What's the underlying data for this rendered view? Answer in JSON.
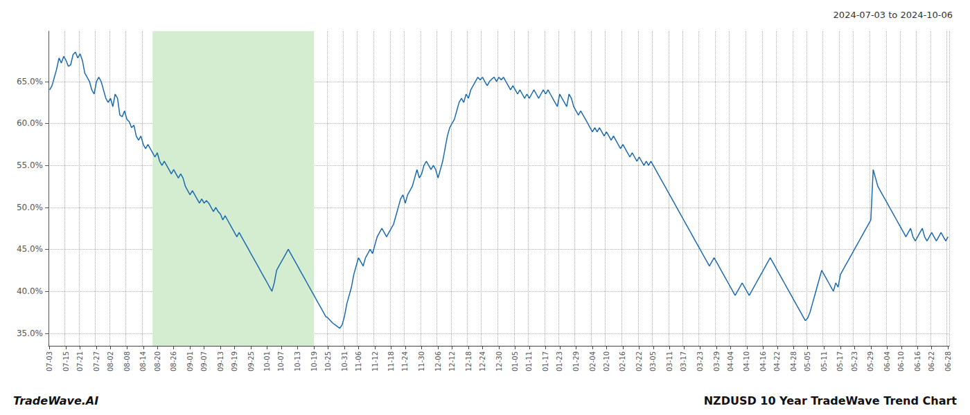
{
  "chart_data": {
    "type": "line",
    "title": "NZDUSD 10 Year TradeWave Trend Chart",
    "annotations": [
      "2024-07-03 to 2024-10-06",
      "TradeWave.AI"
    ],
    "color": "#1a6ab0",
    "grid": true,
    "shade": {
      "x0": 44,
      "x1": 113,
      "color": "#d4ecd0"
    },
    "ylim": [
      33.5,
      71.0
    ],
    "yticks": [
      {
        "value": 35.0,
        "label": "35.0%"
      },
      {
        "value": 40.0,
        "label": "40.0%"
      },
      {
        "value": 45.0,
        "label": "45.0%"
      },
      {
        "value": 50.0,
        "label": "50.0%"
      },
      {
        "value": 55.0,
        "label": "55.0%"
      },
      {
        "value": 60.0,
        "label": "60.0%"
      },
      {
        "value": 65.0,
        "label": "65.0%"
      }
    ],
    "categories": [
      "07-03",
      null,
      null,
      null,
      null,
      null,
      null,
      "07-15",
      null,
      null,
      null,
      null,
      null,
      "07-21",
      null,
      null,
      null,
      null,
      null,
      null,
      "07-27",
      null,
      null,
      null,
      null,
      null,
      "08-02",
      null,
      null,
      null,
      null,
      null,
      null,
      "08-08",
      null,
      null,
      null,
      null,
      null,
      null,
      "08-14",
      null,
      null,
      null,
      null,
      null,
      "08-20",
      null,
      null,
      null,
      null,
      null,
      null,
      "08-26",
      null,
      null,
      null,
      null,
      null,
      null,
      "09-01",
      null,
      null,
      null,
      null,
      null,
      "09-07",
      null,
      null,
      null,
      null,
      null,
      null,
      "09-13",
      null,
      null,
      null,
      null,
      null,
      "09-19",
      null,
      null,
      null,
      null,
      null,
      null,
      "09-25",
      null,
      null,
      null,
      null,
      null,
      null,
      "10-01",
      null,
      null,
      null,
      null,
      null,
      "10-07",
      null,
      null,
      null,
      null,
      null,
      null,
      "10-13",
      null,
      null,
      null,
      null,
      null,
      null,
      "10-19",
      null,
      null,
      null,
      null,
      null,
      "10-25",
      null,
      null,
      null,
      null,
      null,
      null,
      "10-31",
      null,
      null,
      null,
      null,
      null,
      "11-06",
      null,
      null,
      null,
      null,
      null,
      null,
      "11-12",
      null,
      null,
      null,
      null,
      null,
      null,
      "11-18",
      null,
      null,
      null,
      null,
      null,
      "11-24",
      null,
      null,
      null,
      null,
      null,
      null,
      "11-30",
      null,
      null,
      null,
      null,
      null,
      null,
      "12-06",
      null,
      null,
      null,
      null,
      null,
      "12-12",
      null,
      null,
      null,
      null,
      null,
      null,
      "12-18",
      null,
      null,
      null,
      null,
      null,
      "12-24",
      null,
      null,
      null,
      null,
      null,
      null,
      "12-30",
      null,
      null,
      null,
      null,
      null,
      null,
      "01-05",
      null,
      null,
      null,
      null,
      null,
      "01-11",
      null,
      null,
      null,
      null,
      null,
      null,
      "01-17",
      null,
      null,
      null,
      null,
      null,
      "01-23",
      null,
      null,
      null,
      null,
      null,
      null,
      "01-29",
      null,
      null,
      null,
      null,
      null,
      null,
      "02-04",
      null,
      null,
      null,
      null,
      null,
      "02-10",
      null,
      null,
      null,
      null,
      null,
      null,
      "02-16",
      null,
      null,
      null,
      null,
      null,
      null,
      "02-22",
      null,
      null,
      null,
      null,
      null,
      "03-05",
      null,
      null,
      null,
      null,
      null,
      null,
      "03-11",
      null,
      null,
      null,
      null,
      null,
      "03-17",
      null,
      null,
      null,
      null,
      null,
      null,
      "03-23",
      null,
      null,
      null,
      null,
      null,
      null,
      "03-29",
      null,
      null,
      null,
      null,
      null,
      "04-04",
      null,
      null,
      null,
      null,
      null,
      null,
      "04-10",
      null,
      null,
      null,
      null,
      null,
      null,
      "04-16",
      null,
      null,
      null,
      null,
      null,
      "04-22",
      null,
      null,
      null,
      null,
      null,
      null,
      "04-28",
      null,
      null,
      null,
      null,
      null,
      "05-05",
      null,
      null,
      null,
      null,
      null,
      null,
      "05-11",
      null,
      null,
      null,
      null,
      null,
      null,
      "05-17",
      null,
      null,
      null,
      null,
      null,
      "05-23",
      null,
      null,
      null,
      null,
      null,
      null,
      "05-29",
      null,
      null,
      null,
      null,
      null,
      null,
      "06-04",
      null,
      null,
      null,
      null,
      null,
      "06-10",
      null,
      null,
      null,
      null,
      null,
      null,
      "06-16",
      null,
      null,
      null,
      null,
      null,
      "06-22",
      null,
      null,
      null,
      null,
      null,
      null,
      "06-28"
    ],
    "values": [
      64.0,
      64.5,
      65.5,
      66.5,
      67.8,
      67.2,
      68.0,
      67.5,
      66.8,
      67.0,
      68.2,
      68.5,
      67.8,
      68.3,
      67.5,
      66.0,
      65.5,
      65.0,
      64.0,
      63.5,
      65.0,
      65.5,
      65.0,
      64.0,
      63.0,
      62.5,
      63.0,
      62.0,
      63.5,
      63.0,
      61.0,
      60.8,
      61.5,
      60.5,
      60.2,
      59.5,
      59.8,
      58.5,
      58.0,
      58.5,
      57.5,
      57.0,
      57.5,
      57.0,
      56.5,
      56.0,
      56.5,
      55.5,
      55.0,
      55.5,
      55.0,
      54.5,
      54.0,
      54.5,
      54.0,
      53.5,
      54.0,
      53.5,
      52.5,
      52.0,
      51.5,
      52.0,
      51.5,
      51.0,
      50.5,
      51.0,
      50.5,
      50.8,
      50.5,
      50.0,
      49.5,
      50.0,
      49.5,
      49.2,
      48.5,
      49.0,
      48.5,
      48.0,
      47.5,
      47.0,
      46.5,
      47.0,
      46.5,
      46.0,
      45.5,
      45.0,
      44.5,
      44.0,
      43.5,
      43.0,
      42.5,
      42.0,
      41.5,
      41.0,
      40.5,
      40.0,
      41.0,
      42.5,
      43.0,
      43.5,
      44.0,
      44.5,
      45.0,
      44.5,
      44.0,
      43.5,
      43.0,
      42.5,
      42.0,
      41.5,
      41.0,
      40.5,
      40.0,
      39.5,
      39.0,
      38.5,
      38.0,
      37.5,
      37.0,
      36.8,
      36.5,
      36.2,
      36.0,
      35.8,
      35.6,
      36.0,
      37.0,
      38.5,
      39.5,
      40.5,
      42.0,
      43.0,
      44.0,
      43.5,
      43.0,
      44.0,
      44.5,
      45.0,
      44.5,
      45.5,
      46.5,
      47.0,
      47.5,
      47.0,
      46.5,
      47.0,
      47.5,
      48.0,
      49.0,
      50.0,
      51.0,
      51.5,
      50.5,
      51.5,
      52.0,
      52.5,
      53.5,
      54.5,
      53.5,
      54.0,
      55.0,
      55.5,
      55.0,
      54.5,
      55.0,
      54.5,
      53.5,
      54.5,
      55.5,
      57.0,
      58.5,
      59.5,
      60.0,
      60.5,
      61.5,
      62.5,
      63.0,
      62.5,
      63.5,
      63.0,
      64.0,
      64.5,
      65.0,
      65.5,
      65.2,
      65.5,
      65.0,
      64.5,
      65.0,
      65.3,
      65.5,
      65.0,
      65.5,
      65.2,
      65.5,
      65.0,
      64.5,
      64.0,
      64.5,
      64.0,
      63.5,
      64.0,
      63.5,
      63.0,
      63.5,
      63.0,
      63.5,
      64.0,
      63.5,
      63.0,
      63.5,
      64.0,
      63.5,
      64.0,
      63.5,
      63.0,
      62.5,
      62.0,
      63.5,
      63.0,
      62.5,
      62.0,
      63.5,
      63.0,
      62.0,
      61.5,
      61.0,
      61.5,
      61.0,
      60.5,
      60.0,
      59.5,
      59.0,
      59.5,
      59.0,
      59.5,
      59.0,
      58.5,
      59.0,
      58.5,
      58.0,
      58.5,
      58.0,
      57.5,
      57.0,
      57.5,
      57.0,
      56.5,
      56.0,
      56.5,
      56.0,
      55.5,
      56.0,
      55.5,
      55.0,
      55.5,
      55.0,
      55.5,
      55.0,
      54.5,
      54.0,
      53.5,
      53.0,
      52.5,
      52.0,
      51.5,
      51.0,
      50.5,
      50.0,
      49.5,
      49.0,
      48.5,
      48.0,
      47.5,
      47.0,
      46.5,
      46.0,
      45.5,
      45.0,
      44.5,
      44.0,
      43.5,
      43.0,
      43.5,
      44.0,
      43.5,
      43.0,
      42.5,
      42.0,
      41.5,
      41.0,
      40.5,
      40.0,
      39.5,
      40.0,
      40.5,
      41.0,
      40.5,
      40.0,
      39.5,
      40.0,
      40.5,
      41.0,
      41.5,
      42.0,
      42.5,
      43.0,
      43.5,
      44.0,
      43.5,
      43.0,
      42.5,
      42.0,
      41.5,
      41.0,
      40.5,
      40.0,
      39.5,
      39.0,
      38.5,
      38.0,
      37.5,
      37.0,
      36.5,
      36.8,
      37.5,
      38.5,
      39.5,
      40.5,
      41.5,
      42.5,
      42.0,
      41.5,
      41.0,
      40.5,
      40.0,
      41.0,
      40.5,
      42.0,
      42.5,
      43.0,
      43.5,
      44.0,
      44.5,
      45.0,
      45.5,
      46.0,
      46.5,
      47.0,
      47.5,
      48.0,
      48.5,
      54.5,
      53.5,
      52.5,
      52.0,
      51.5,
      51.0,
      50.5,
      50.0,
      49.5,
      49.0,
      48.5,
      48.0,
      47.5,
      47.0,
      46.5,
      47.0,
      47.5,
      46.5,
      46.0,
      46.5,
      47.0,
      47.5,
      46.5,
      46.0,
      46.5,
      47.0,
      46.5,
      46.0,
      46.5,
      47.0,
      46.5,
      46.0,
      46.5
    ]
  }
}
